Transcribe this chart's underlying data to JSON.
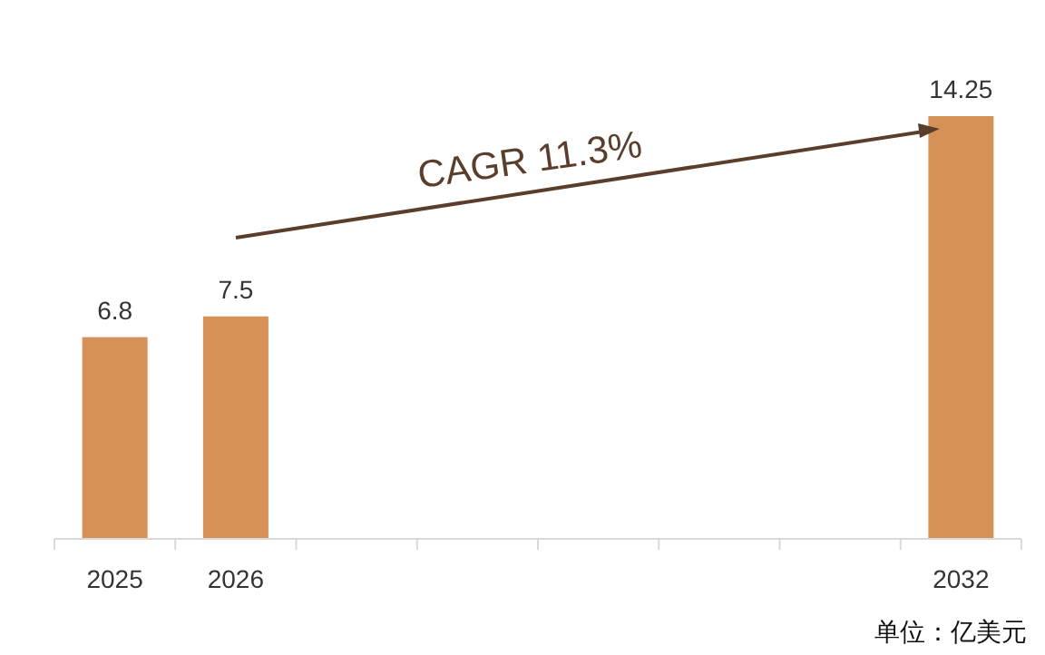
{
  "chart_data": {
    "type": "bar",
    "categories": [
      "2025",
      "2026",
      null,
      null,
      null,
      null,
      null,
      "2032"
    ],
    "values": [
      6.8,
      7.5,
      null,
      null,
      null,
      null,
      null,
      14.25
    ],
    "color": "#d69157",
    "data_labels": true,
    "annotations": [
      "CAGR 11.3%",
      "单位：亿美元"
    ]
  }
}
